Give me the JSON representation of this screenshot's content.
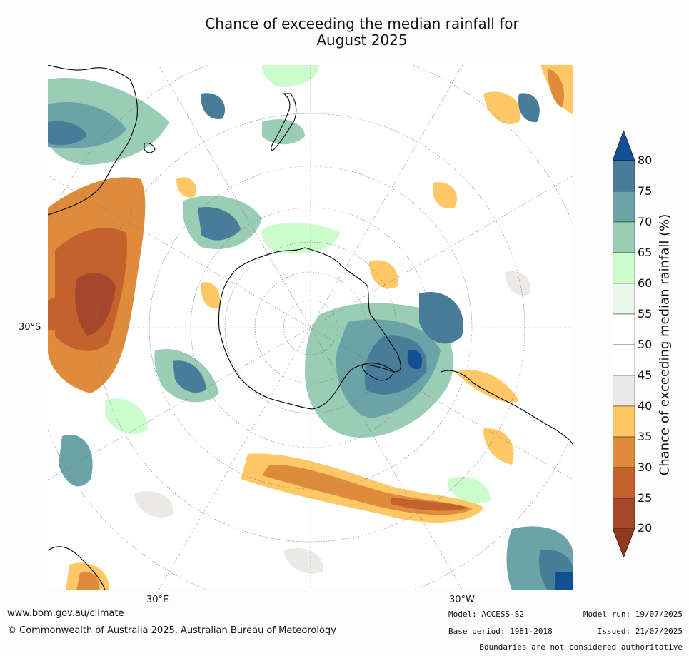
{
  "title": {
    "line1": "Chance of exceeding the median rainfall for",
    "line2": "August 2025"
  },
  "map": {
    "projection": "south-polar stereographic",
    "labels": {
      "lat_30s": "30°S",
      "lon_30e": "30°E",
      "lon_30w": "30°W"
    }
  },
  "colorbar": {
    "label": "Chance of exceeding median rainfall (%)",
    "ticks": [
      "20",
      "25",
      "30",
      "35",
      "40",
      "45",
      "50",
      "55",
      "60",
      "65",
      "70",
      "75",
      "80"
    ],
    "colors": {
      "below_20": "#8e3a1c",
      "20_25": "#a5472a",
      "25_30": "#c4622e",
      "30_35": "#de8c3c",
      "35_40": "#fdc865",
      "40_45": "#ebe9e6",
      "45_50": "#ffffff",
      "50_55": "#ffffff",
      "55_60": "#eaf6ea",
      "60_65": "#ccfccc",
      "65_70": "#99cdb5",
      "70_75": "#6aa4a9",
      "75_80": "#487d99",
      "above_80": "#115193"
    }
  },
  "footer": {
    "website": "www.bom.gov.au/climate",
    "copyright": "© Commonwealth of Australia 2025, Australian Bureau of Meteorology",
    "model": "Model: ACCESS-S2",
    "base_period": "Base period: 1981-2018",
    "model_run": "Model run: 19/07/2025",
    "issued": "Issued: 21/07/2025",
    "disclaimer": "Boundaries are not considered authoritative"
  }
}
